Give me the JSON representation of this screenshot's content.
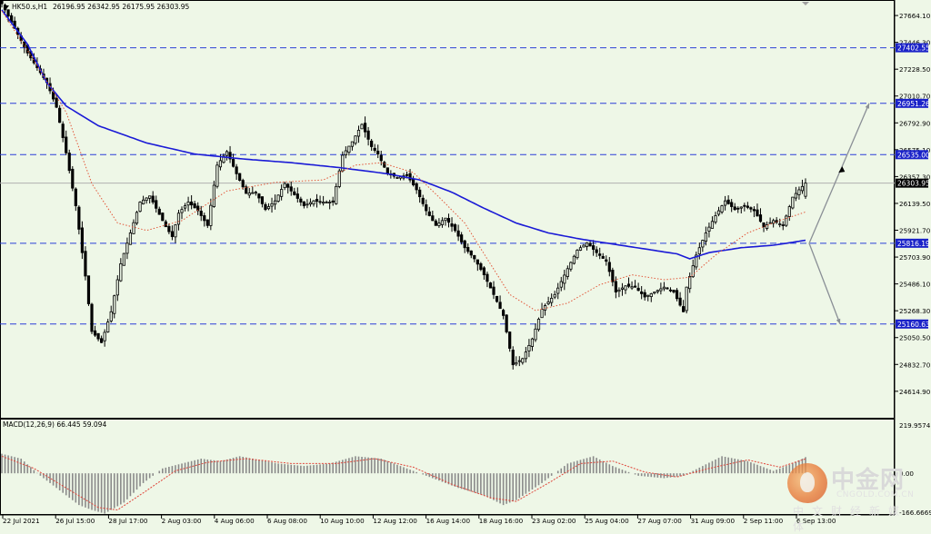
{
  "header": {
    "symbol_label": "HK50.s,H1",
    "ohlc_text": "26196.95 26342.95 26175.95 26303.95"
  },
  "macd_header": {
    "label": "MACD(12,26,9) 66.445 59.094"
  },
  "price_axis": {
    "ticks": [
      "27664.10",
      "27446.30",
      "27228.50",
      "27010.70",
      "26792.90",
      "26575.10",
      "26357.30",
      "26139.50",
      "25921.70",
      "25703.90",
      "25486.10",
      "25268.30",
      "25050.50",
      "24832.70",
      "24614.90"
    ],
    "current_price_label": "26303.95",
    "level_labels": [
      "27402.55",
      "26951.26",
      "26535.00",
      "25816.19",
      "25160.63"
    ]
  },
  "macd_axis": {
    "ticks": [
      "219.9574",
      "0.00",
      "-166.6669"
    ]
  },
  "time_axis": {
    "labels": [
      "22 Jul 2021",
      "26 Jul 15:00",
      "28 Jul 17:00",
      "2 Aug 03:00",
      "4 Aug 06:00",
      "6 Aug 08:00",
      "10 Aug 10:00",
      "12 Aug 12:00",
      "16 Aug 14:00",
      "18 Aug 16:00",
      "23 Aug 02:00",
      "25 Aug 04:00",
      "27 Aug 07:00",
      "31 Aug 09:00",
      "2 Sep 11:00",
      "6 Sep 13:00"
    ]
  },
  "colors": {
    "background": "#eef7e7",
    "candle": "#000000",
    "ma_slow": "#1a1ad6",
    "ma_fast": "#e2573a",
    "level_line": "#2b3fd8",
    "macd_hist": "#8a8a8a",
    "macd_signal": "#e0453a",
    "projection_arrow": "#8a8f96",
    "label_box": "#1a22c8"
  },
  "watermark": {
    "brand": "中金网",
    "url": "CNGOLD.COM.CN",
    "sub": "中文财经新媒体"
  },
  "chart_data": {
    "type": "candlestick",
    "symbol": "HK50.s",
    "timeframe": "H1",
    "last_bar": {
      "open": 26196.95,
      "high": 26342.95,
      "low": 26175.95,
      "close": 26303.95
    },
    "y_range": [
      24400,
      27790
    ],
    "horizontal_levels": [
      27402.55,
      26951.26,
      26535.0,
      25816.19,
      25160.63
    ],
    "close_path": [
      [
        0,
        27760
      ],
      [
        4,
        27560
      ],
      [
        8,
        27360
      ],
      [
        14,
        27120
      ],
      [
        17,
        26920
      ],
      [
        20,
        26550
      ],
      [
        23,
        26120
      ],
      [
        26,
        25550
      ],
      [
        28,
        25100
      ],
      [
        31,
        25010
      ],
      [
        34,
        25260
      ],
      [
        37,
        25650
      ],
      [
        40,
        25900
      ],
      [
        43,
        26150
      ],
      [
        46,
        26200
      ],
      [
        49,
        26050
      ],
      [
        51,
        25950
      ],
      [
        53,
        25870
      ],
      [
        55,
        26060
      ],
      [
        58,
        26150
      ],
      [
        61,
        26080
      ],
      [
        64,
        25960
      ],
      [
        67,
        26450
      ],
      [
        70,
        26560
      ],
      [
        73,
        26380
      ],
      [
        76,
        26220
      ],
      [
        79,
        26230
      ],
      [
        82,
        26090
      ],
      [
        85,
        26160
      ],
      [
        88,
        26300
      ],
      [
        91,
        26210
      ],
      [
        94,
        26120
      ],
      [
        97,
        26160
      ],
      [
        100,
        26150
      ],
      [
        103,
        26150
      ],
      [
        106,
        26530
      ],
      [
        109,
        26640
      ],
      [
        112,
        26780
      ],
      [
        115,
        26600
      ],
      [
        117,
        26540
      ],
      [
        120,
        26380
      ],
      [
        123,
        26350
      ],
      [
        126,
        26370
      ],
      [
        129,
        26250
      ],
      [
        132,
        26080
      ],
      [
        135,
        25960
      ],
      [
        138,
        26020
      ],
      [
        141,
        25920
      ],
      [
        144,
        25780
      ],
      [
        147,
        25690
      ],
      [
        150,
        25560
      ],
      [
        153,
        25400
      ],
      [
        156,
        25230
      ],
      [
        159,
        24830
      ],
      [
        162,
        24880
      ],
      [
        165,
        25040
      ],
      [
        168,
        25280
      ],
      [
        172,
        25400
      ],
      [
        176,
        25610
      ],
      [
        179,
        25760
      ],
      [
        182,
        25820
      ],
      [
        185,
        25740
      ],
      [
        188,
        25670
      ],
      [
        191,
        25420
      ],
      [
        194,
        25470
      ],
      [
        197,
        25460
      ],
      [
        200,
        25380
      ],
      [
        203,
        25420
      ],
      [
        206,
        25460
      ],
      [
        209,
        25420
      ],
      [
        212,
        25260
      ],
      [
        213,
        25460
      ],
      [
        216,
        25720
      ],
      [
        219,
        25900
      ],
      [
        222,
        26040
      ],
      [
        225,
        26160
      ],
      [
        228,
        26090
      ],
      [
        231,
        26120
      ],
      [
        234,
        26080
      ],
      [
        237,
        25950
      ],
      [
        240,
        26000
      ],
      [
        243,
        25960
      ],
      [
        246,
        26190
      ],
      [
        248,
        26250
      ],
      [
        250,
        26303.95
      ]
    ],
    "moving_averages": [
      {
        "color": "#1a1ad6",
        "style": "solid",
        "values": [
          [
            0,
            27710
          ],
          [
            8,
            27430
          ],
          [
            14,
            27120
          ],
          [
            20,
            26930
          ],
          [
            30,
            26770
          ],
          [
            45,
            26630
          ],
          [
            60,
            26540
          ],
          [
            75,
            26500
          ],
          [
            90,
            26470
          ],
          [
            105,
            26430
          ],
          [
            120,
            26380
          ],
          [
            130,
            26330
          ],
          [
            140,
            26230
          ],
          [
            150,
            26100
          ],
          [
            160,
            25980
          ],
          [
            170,
            25900
          ],
          [
            180,
            25850
          ],
          [
            190,
            25810
          ],
          [
            200,
            25770
          ],
          [
            210,
            25730
          ],
          [
            214,
            25690
          ],
          [
            220,
            25740
          ],
          [
            230,
            25780
          ],
          [
            240,
            25800
          ],
          [
            250,
            25840
          ]
        ]
      },
      {
        "color": "#e2573a",
        "style": "dotted",
        "values": [
          [
            0,
            27700
          ],
          [
            10,
            27300
          ],
          [
            20,
            26880
          ],
          [
            28,
            26300
          ],
          [
            36,
            25980
          ],
          [
            45,
            25920
          ],
          [
            56,
            26000
          ],
          [
            70,
            26240
          ],
          [
            85,
            26310
          ],
          [
            100,
            26330
          ],
          [
            110,
            26450
          ],
          [
            118,
            26470
          ],
          [
            128,
            26390
          ],
          [
            136,
            26190
          ],
          [
            144,
            25980
          ],
          [
            150,
            25730
          ],
          [
            158,
            25400
          ],
          [
            166,
            25270
          ],
          [
            176,
            25330
          ],
          [
            186,
            25480
          ],
          [
            196,
            25560
          ],
          [
            206,
            25520
          ],
          [
            214,
            25540
          ],
          [
            222,
            25720
          ],
          [
            232,
            25900
          ],
          [
            242,
            26000
          ],
          [
            250,
            26070
          ]
        ]
      }
    ],
    "projection_arrows": [
      {
        "from": [
          25816.19,
          "6 Sep 13:00"
        ],
        "to": [
          26951.26,
          "up"
        ]
      },
      {
        "from": [
          25816.19,
          "6 Sep 13:00"
        ],
        "to": [
          25160.63,
          "down"
        ]
      }
    ],
    "macd": {
      "params": [
        12,
        26,
        9
      ],
      "value": 66.445,
      "signal": 59.094,
      "y_range": [
        -166.6669,
        219.9574
      ],
      "hist_path": [
        [
          0,
          80
        ],
        [
          6,
          60
        ],
        [
          12,
          -10
        ],
        [
          18,
          -70
        ],
        [
          24,
          -130
        ],
        [
          28,
          -150
        ],
        [
          32,
          -165
        ],
        [
          38,
          -120
        ],
        [
          44,
          -40
        ],
        [
          50,
          20
        ],
        [
          56,
          40
        ],
        [
          62,
          60
        ],
        [
          68,
          50
        ],
        [
          74,
          70
        ],
        [
          80,
          55
        ],
        [
          86,
          40
        ],
        [
          94,
          30
        ],
        [
          102,
          40
        ],
        [
          110,
          70
        ],
        [
          118,
          60
        ],
        [
          126,
          20
        ],
        [
          134,
          -20
        ],
        [
          142,
          -60
        ],
        [
          150,
          -90
        ],
        [
          156,
          -130
        ],
        [
          160,
          -110
        ],
        [
          168,
          -40
        ],
        [
          176,
          40
        ],
        [
          184,
          70
        ],
        [
          190,
          30
        ],
        [
          198,
          -10
        ],
        [
          206,
          -20
        ],
        [
          212,
          -10
        ],
        [
          218,
          30
        ],
        [
          224,
          70
        ],
        [
          232,
          50
        ],
        [
          240,
          10
        ],
        [
          246,
          40
        ],
        [
          250,
          66.445
        ]
      ],
      "signal_path": [
        [
          0,
          70
        ],
        [
          10,
          20
        ],
        [
          20,
          -60
        ],
        [
          30,
          -140
        ],
        [
          36,
          -150
        ],
        [
          44,
          -80
        ],
        [
          54,
          10
        ],
        [
          64,
          45
        ],
        [
          76,
          60
        ],
        [
          90,
          40
        ],
        [
          104,
          40
        ],
        [
          116,
          60
        ],
        [
          128,
          25
        ],
        [
          140,
          -45
        ],
        [
          152,
          -100
        ],
        [
          160,
          -115
        ],
        [
          170,
          -40
        ],
        [
          180,
          40
        ],
        [
          190,
          50
        ],
        [
          200,
          5
        ],
        [
          210,
          -15
        ],
        [
          220,
          20
        ],
        [
          232,
          55
        ],
        [
          242,
          25
        ],
        [
          250,
          59.094
        ]
      ]
    }
  }
}
